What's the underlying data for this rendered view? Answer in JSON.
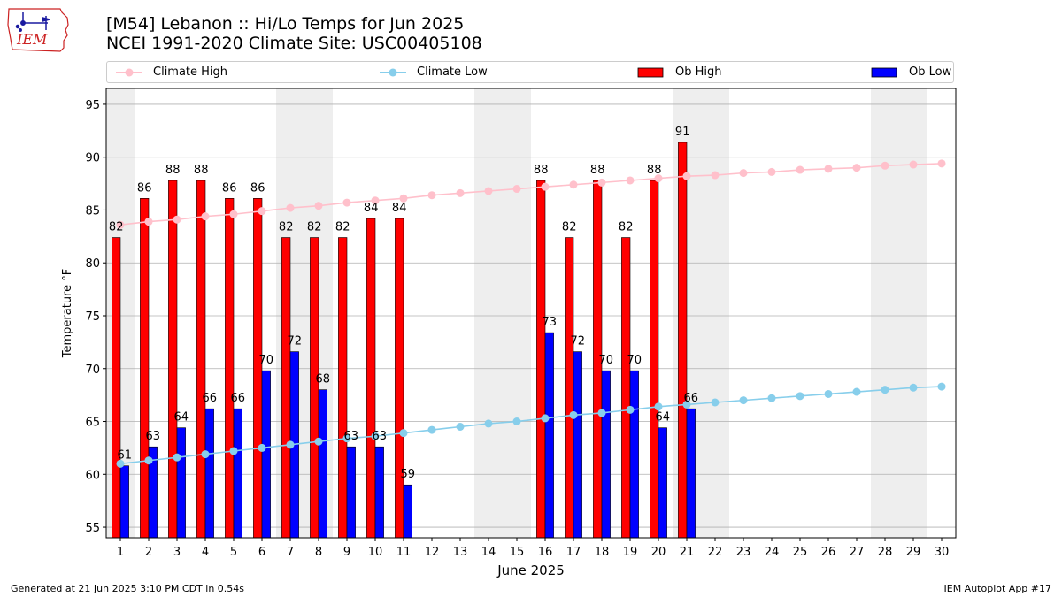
{
  "logo": {
    "text": "IEM"
  },
  "header": {
    "title_line1": "[M54] Lebanon :: Hi/Lo Temps for Jun 2025",
    "title_line2": "NCEI 1991-2020 Climate Site: USC00405108"
  },
  "legend": {
    "climate_high": "Climate High",
    "climate_low": "Climate Low",
    "ob_high": "Ob High",
    "ob_low": "Ob Low"
  },
  "footer": {
    "generated": "Generated at 21 Jun 2025 3:10 PM CDT in 0.54s",
    "app": "IEM Autoplot App #17"
  },
  "colors": {
    "ob_high": "#ff0000",
    "ob_low": "#0000ff",
    "climate_high": "#ffc0cb",
    "climate_low": "#87ceeb",
    "weekend_band": "#eeeeee",
    "grid": "#b0b0b0"
  },
  "chart_data": {
    "type": "bar",
    "xlabel": "June 2025",
    "ylabel": "Temperature °F",
    "ylim": [
      54,
      96.5
    ],
    "yticks": [
      55,
      60,
      65,
      70,
      75,
      80,
      85,
      90,
      95
    ],
    "grid": "horizontal",
    "legend_position": "top",
    "categories": [
      1,
      2,
      3,
      4,
      5,
      6,
      7,
      8,
      9,
      10,
      11,
      12,
      13,
      14,
      15,
      16,
      17,
      18,
      19,
      20,
      21,
      22,
      23,
      24,
      25,
      26,
      27,
      28,
      29,
      30
    ],
    "weekend_days": [
      [
        1,
        1
      ],
      [
        7,
        8
      ],
      [
        14,
        15
      ],
      [
        21,
        22
      ],
      [
        28,
        29
      ]
    ],
    "series": [
      {
        "name": "Ob High",
        "kind": "bar",
        "values": [
          82,
          86,
          88,
          88,
          86,
          86,
          82,
          82,
          82,
          84,
          84,
          null,
          null,
          null,
          null,
          88,
          82,
          88,
          82,
          88,
          91,
          null,
          null,
          null,
          null,
          null,
          null,
          null,
          null,
          null
        ],
        "heights": [
          82.4,
          86.1,
          87.8,
          87.8,
          86.1,
          86.1,
          82.4,
          82.4,
          82.4,
          84.2,
          84.2,
          null,
          null,
          null,
          null,
          87.8,
          82.4,
          87.8,
          82.4,
          87.8,
          91.4,
          null,
          null,
          null,
          null,
          null,
          null,
          null,
          null,
          null
        ]
      },
      {
        "name": "Ob Low",
        "kind": "bar",
        "values": [
          61,
          63,
          64,
          66,
          66,
          70,
          72,
          68,
          63,
          63,
          59,
          null,
          null,
          null,
          null,
          73,
          72,
          70,
          70,
          64,
          66,
          null,
          null,
          null,
          null,
          null,
          null,
          null,
          null,
          null
        ],
        "heights": [
          60.8,
          62.6,
          64.4,
          66.2,
          66.2,
          69.8,
          71.6,
          68.0,
          62.6,
          62.6,
          59.0,
          null,
          null,
          null,
          null,
          73.4,
          71.6,
          69.8,
          69.8,
          64.4,
          66.2,
          null,
          null,
          null,
          null,
          null,
          null,
          null,
          null,
          null
        ]
      },
      {
        "name": "Climate High",
        "kind": "line",
        "values": [
          83.6,
          83.9,
          84.1,
          84.4,
          84.6,
          84.9,
          85.2,
          85.4,
          85.7,
          85.9,
          86.1,
          86.4,
          86.6,
          86.8,
          87.0,
          87.2,
          87.4,
          87.6,
          87.8,
          88.0,
          88.2,
          88.3,
          88.5,
          88.6,
          88.8,
          88.9,
          89.0,
          89.2,
          89.3,
          89.4
        ]
      },
      {
        "name": "Climate Low",
        "kind": "line",
        "values": [
          61.0,
          61.3,
          61.6,
          61.9,
          62.2,
          62.5,
          62.8,
          63.1,
          63.4,
          63.6,
          63.9,
          64.2,
          64.5,
          64.8,
          65.0,
          65.3,
          65.6,
          65.8,
          66.1,
          66.4,
          66.6,
          66.8,
          67.0,
          67.2,
          67.4,
          67.6,
          67.8,
          68.0,
          68.2,
          68.3
        ]
      }
    ]
  }
}
